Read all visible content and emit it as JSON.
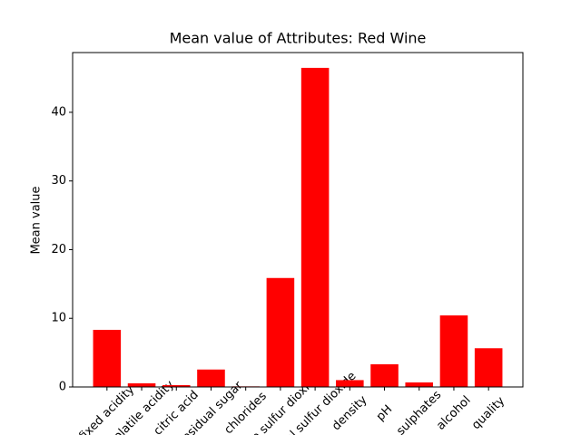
{
  "chart_data": {
    "type": "bar",
    "title": "Mean value of Attributes: Red Wine",
    "y_label": "Mean value",
    "categories": [
      "fixed acidity",
      "volatile acidity",
      "citric acid",
      "residual sugar",
      "chlorides",
      "free sulfur dioxide",
      "total sulfur dioxide",
      "density",
      "pH",
      "sulphates",
      "alcohol",
      "quality"
    ],
    "values": [
      8.32,
      0.53,
      0.27,
      2.54,
      0.087,
      15.87,
      46.47,
      0.997,
      3.31,
      0.66,
      10.42,
      5.64
    ],
    "color": "#ff0000",
    "ylim": [
      0,
      48.7
    ],
    "yticks": [
      0,
      10,
      20,
      30,
      40
    ],
    "grid": false
  }
}
